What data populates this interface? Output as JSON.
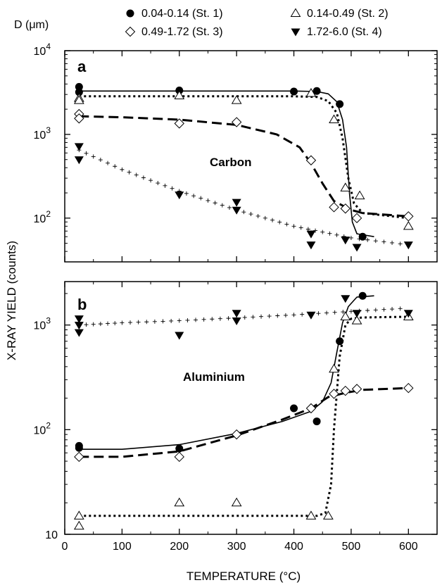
{
  "legend": {
    "title": "D (μm)",
    "entries": [
      {
        "label": "0.04-0.14  (St. 1)",
        "marker": "filled-circle"
      },
      {
        "label": "0.14-0.49  (St. 2)",
        "marker": "open-triangle-up"
      },
      {
        "label": "0.49-1.72  (St. 3)",
        "marker": "open-diamond"
      },
      {
        "label": "1.72-6.0  (St. 4)",
        "marker": "filled-triangle-down"
      }
    ]
  },
  "chart_data": [
    {
      "type": "scatter",
      "panel_label": "a",
      "annotation": "Carbon",
      "xlabel": "TEMPERATURE (°C)",
      "ylabel": "X-RAY YIELD (counts)",
      "xlim": [
        0,
        650
      ],
      "ylim": [
        30,
        10000
      ],
      "yscale": "log",
      "x_ticks": [
        0,
        100,
        200,
        300,
        400,
        500,
        600
      ],
      "y_ticks": [
        {
          "value": 100,
          "base": "10",
          "exp": "2"
        },
        {
          "value": 1000,
          "base": "10",
          "exp": "3"
        },
        {
          "value": 10000,
          "base": "10",
          "exp": "4"
        }
      ],
      "series": [
        {
          "name": "0.04-0.14  (St. 1)",
          "marker": "filled-circle",
          "points": [
            [
              25,
              3700
            ],
            [
              25,
              3200
            ],
            [
              200,
              3350
            ],
            [
              400,
              3250
            ],
            [
              440,
              3300
            ],
            [
              480,
              2300
            ],
            [
              520,
              60
            ]
          ]
        },
        {
          "name": "0.14-0.49  (St. 2)",
          "marker": "open-triangle-up",
          "points": [
            [
              25,
              2700
            ],
            [
              25,
              2550
            ],
            [
              200,
              2900
            ],
            [
              300,
              2550
            ],
            [
              430,
              3100
            ],
            [
              470,
              1500
            ],
            [
              490,
              230
            ],
            [
              515,
              185
            ],
            [
              600,
              80
            ]
          ]
        },
        {
          "name": "0.49-1.72  (St. 3)",
          "marker": "open-diamond",
          "points": [
            [
              25,
              1750
            ],
            [
              25,
              1550
            ],
            [
              200,
              1350
            ],
            [
              300,
              1400
            ],
            [
              430,
              490
            ],
            [
              470,
              135
            ],
            [
              490,
              130
            ],
            [
              510,
              100
            ],
            [
              600,
              105
            ]
          ]
        },
        {
          "name": "1.72-6.0  (St. 4)",
          "marker": "filled-triangle-down",
          "points": [
            [
              25,
              720
            ],
            [
              25,
              500
            ],
            [
              200,
              190
            ],
            [
              300,
              155
            ],
            [
              300,
              125
            ],
            [
              430,
              65
            ],
            [
              430,
              48
            ],
            [
              490,
              55
            ],
            [
              510,
              45
            ],
            [
              600,
              48
            ]
          ]
        }
      ],
      "fits": [
        {
          "style": "solid",
          "points": [
            [
              25,
              3300
            ],
            [
              400,
              3300
            ],
            [
              440,
              3250
            ],
            [
              460,
              3050
            ],
            [
              475,
              2450
            ],
            [
              485,
              1500
            ],
            [
              492,
              700
            ],
            [
              497,
              200
            ],
            [
              502,
              90
            ],
            [
              510,
              65
            ],
            [
              540,
              60
            ]
          ]
        },
        {
          "style": "dotted",
          "points": [
            [
              25,
              2850
            ],
            [
              400,
              2850
            ],
            [
              440,
              2800
            ],
            [
              460,
              2500
            ],
            [
              475,
              1800
            ],
            [
              485,
              900
            ],
            [
              495,
              300
            ],
            [
              505,
              150
            ],
            [
              520,
              115
            ],
            [
              600,
              100
            ]
          ]
        },
        {
          "style": "dashed",
          "points": [
            [
              25,
              1650
            ],
            [
              100,
              1600
            ],
            [
              200,
              1500
            ],
            [
              300,
              1300
            ],
            [
              370,
              1000
            ],
            [
              410,
              700
            ],
            [
              430,
              450
            ],
            [
              450,
              260
            ],
            [
              470,
              160
            ],
            [
              500,
              125
            ],
            [
              520,
              115
            ],
            [
              600,
              105
            ]
          ]
        },
        {
          "style": "crosses",
          "points": [
            [
              25,
              650
            ],
            [
              100,
              380
            ],
            [
              200,
              210
            ],
            [
              300,
              125
            ],
            [
              400,
              80
            ],
            [
              500,
              58
            ],
            [
              600,
              48
            ]
          ]
        }
      ]
    },
    {
      "type": "scatter",
      "panel_label": "b",
      "annotation": "Aluminium",
      "xlabel": "TEMPERATURE (°C)",
      "ylabel": "X-RAY YIELD (counts)",
      "xlim": [
        0,
        650
      ],
      "ylim": [
        10,
        2600
      ],
      "yscale": "log",
      "x_ticks": [
        0,
        100,
        200,
        300,
        400,
        500,
        600
      ],
      "y_ticks": [
        {
          "value": 10,
          "base": "10",
          "exp": ""
        },
        {
          "value": 100,
          "base": "10",
          "exp": "2"
        },
        {
          "value": 1000,
          "base": "10",
          "exp": "3"
        }
      ],
      "series": [
        {
          "name": "0.04-0.14  (St. 1)",
          "marker": "filled-circle",
          "points": [
            [
              25,
              70
            ],
            [
              25,
              67
            ],
            [
              200,
              66
            ],
            [
              400,
              160
            ],
            [
              440,
              120
            ],
            [
              480,
              700
            ],
            [
              520,
              1900
            ]
          ]
        },
        {
          "name": "0.14-0.49  (St. 2)",
          "marker": "open-triangle-up",
          "points": [
            [
              25,
              15
            ],
            [
              25,
              12
            ],
            [
              200,
              20
            ],
            [
              300,
              20
            ],
            [
              430,
              15
            ],
            [
              460,
              15
            ],
            [
              470,
              380
            ],
            [
              490,
              1200
            ],
            [
              510,
              1100
            ],
            [
              600,
              1200
            ]
          ]
        },
        {
          "name": "0.49-1.72  (St. 3)",
          "marker": "open-diamond",
          "points": [
            [
              25,
              55
            ],
            [
              200,
              55
            ],
            [
              300,
              90
            ],
            [
              430,
              160
            ],
            [
              470,
              220
            ],
            [
              490,
              235
            ],
            [
              510,
              245
            ],
            [
              600,
              250
            ]
          ]
        },
        {
          "name": "1.72-6.0  (St. 4)",
          "marker": "filled-triangle-down",
          "points": [
            [
              25,
              1150
            ],
            [
              25,
              1000
            ],
            [
              25,
              850
            ],
            [
              200,
              800
            ],
            [
              300,
              1300
            ],
            [
              300,
              1100
            ],
            [
              430,
              1250
            ],
            [
              490,
              1800
            ],
            [
              510,
              1300
            ],
            [
              600,
              1300
            ]
          ]
        }
      ],
      "fits": [
        {
          "style": "solid",
          "points": [
            [
              25,
              65
            ],
            [
              100,
              65
            ],
            [
              200,
              72
            ],
            [
              300,
              92
            ],
            [
              380,
              120
            ],
            [
              430,
              150
            ],
            [
              450,
              185
            ],
            [
              465,
              280
            ],
            [
              475,
              550
            ],
            [
              485,
              1050
            ],
            [
              495,
              1500
            ],
            [
              510,
              1850
            ],
            [
              540,
              1900
            ]
          ]
        },
        {
          "style": "dashed",
          "points": [
            [
              25,
              55
            ],
            [
              100,
              55
            ],
            [
              200,
              62
            ],
            [
              300,
              88
            ],
            [
              380,
              125
            ],
            [
              430,
              160
            ],
            [
              460,
              205
            ],
            [
              490,
              225
            ],
            [
              520,
              240
            ],
            [
              600,
              250
            ]
          ]
        },
        {
          "style": "dotted",
          "points": [
            [
              25,
              15
            ],
            [
              440,
              15
            ],
            [
              455,
              16
            ],
            [
              465,
              30
            ],
            [
              470,
              100
            ],
            [
              480,
              500
            ],
            [
              490,
              1000
            ],
            [
              500,
              1150
            ],
            [
              520,
              1180
            ],
            [
              600,
              1200
            ]
          ]
        },
        {
          "style": "crosses",
          "points": [
            [
              25,
              1000
            ],
            [
              100,
              1050
            ],
            [
              200,
              1100
            ],
            [
              300,
              1170
            ],
            [
              400,
              1250
            ],
            [
              500,
              1350
            ],
            [
              600,
              1450
            ]
          ]
        }
      ]
    }
  ]
}
